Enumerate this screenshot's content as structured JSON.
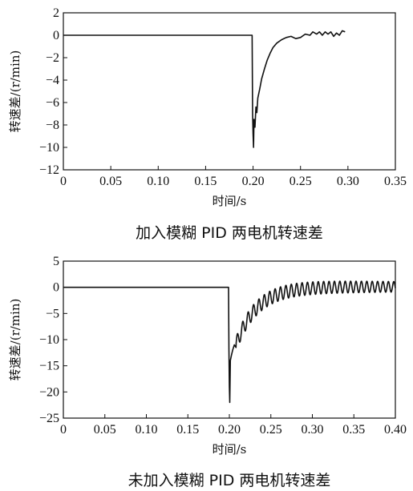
{
  "chart_data": [
    {
      "type": "line",
      "caption": "加入模糊 PID 两电机转速差",
      "xlabel": "时间/s",
      "ylabel": "转速差/(r/min)",
      "xlim": [
        0,
        0.35
      ],
      "ylim": [
        -12,
        2
      ],
      "xticks": [
        "0",
        "0.05",
        "0.10",
        "0.15",
        "0.20",
        "0.25",
        "0.30",
        "0.35"
      ],
      "yticks": [
        "2",
        "0",
        "−2",
        "−4",
        "−6",
        "−8",
        "−10",
        "−12"
      ],
      "grid": false,
      "series": [
        {
          "color": "#111111",
          "x": [
            0,
            0.199,
            0.1995,
            0.2,
            0.2005,
            0.201,
            0.202,
            0.203,
            0.204,
            0.205,
            0.207,
            0.209,
            0.212,
            0.215,
            0.218,
            0.221,
            0.225,
            0.23,
            0.235,
            0.24,
            0.245,
            0.25,
            0.255,
            0.26,
            0.263,
            0.267,
            0.27,
            0.273,
            0.276,
            0.279,
            0.282,
            0.285,
            0.288,
            0.291,
            0.294,
            0.297
          ],
          "y": [
            0,
            0,
            -7,
            -8.8,
            -10.0,
            -7.5,
            -8.2,
            -6.4,
            -6.9,
            -5.6,
            -4.8,
            -3.9,
            -3.0,
            -2.2,
            -1.6,
            -1.1,
            -0.7,
            -0.4,
            -0.2,
            -0.1,
            -0.3,
            -0.2,
            0.1,
            0.0,
            0.3,
            0.1,
            0.3,
            0.0,
            0.3,
            0.1,
            0.3,
            -0.1,
            0.2,
            0.0,
            0.4,
            0.3
          ]
        }
      ]
    },
    {
      "type": "line",
      "caption": "未加入模糊 PID 两电机转速差",
      "xlabel": "时间/s",
      "ylabel": "转速差/(r/min)",
      "xlim": [
        0,
        0.4
      ],
      "ylim": [
        -25,
        5
      ],
      "xticks": [
        "0",
        "0.05",
        "0.10",
        "0.15",
        "0.20",
        "0.25",
        "0.30",
        "0.35",
        "0.40"
      ],
      "yticks": [
        "5",
        "0",
        "−5",
        "−10",
        "−15",
        "−20",
        "−25"
      ],
      "grid": false,
      "series": [
        {
          "color": "#111111",
          "x": [
            0,
            0.199,
            0.1995,
            0.2,
            0.2005,
            0.2012,
            0.2025,
            0.204,
            0.206,
            0.208
          ],
          "y": [
            0,
            0,
            -12,
            -19,
            -22,
            -14,
            -13,
            -12,
            -11,
            -11.5
          ],
          "oscillation": {
            "x_start": 0.208,
            "x_end": 0.4,
            "center_start": -11,
            "center_end": 0.1,
            "decay_tau": 0.025,
            "period": 0.0065,
            "amplitude_start": 1.4,
            "amplitude_end": 1.0
          }
        }
      ]
    }
  ]
}
